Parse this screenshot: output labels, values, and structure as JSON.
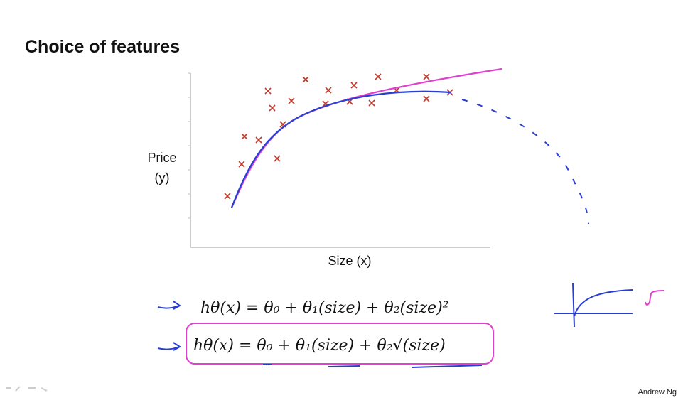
{
  "slide": {
    "title": "Choice of features",
    "y_axis_label": [
      "Price",
      "(y)"
    ],
    "x_axis_label": "Size (x)",
    "formulas": [
      "hθ(x) = θ₀ + θ₁(size) + θ₂(size)²",
      "hθ(x) = θ₀ + θ₁(size) + θ₂√(size)"
    ],
    "author": "Andrew Ng"
  }
}
